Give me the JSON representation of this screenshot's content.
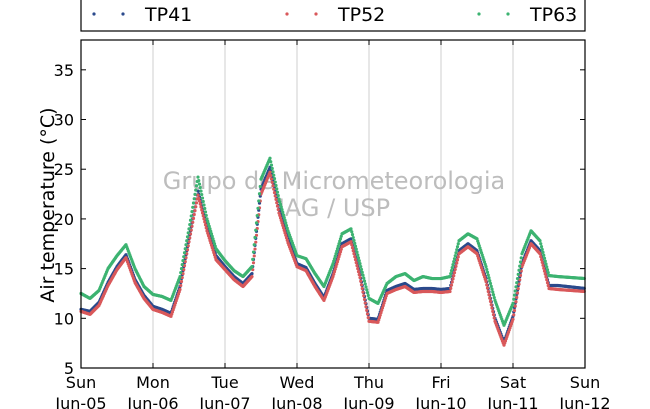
{
  "chart_data": {
    "type": "line",
    "ylabel": "Air temperature (°C)",
    "ylim": [
      5,
      38
    ],
    "yticks": [
      5,
      10,
      15,
      20,
      25,
      30,
      35
    ],
    "xlim": [
      "2016-06-05T00:00",
      "2016-06-12T00:00"
    ],
    "xticks": [
      {
        "day": "Sun",
        "date": "Jun-05"
      },
      {
        "day": "Mon",
        "date": "Jun-06"
      },
      {
        "day": "Tue",
        "date": "Jun-07"
      },
      {
        "day": "Wed",
        "date": "Jun-08"
      },
      {
        "day": "Thu",
        "date": "Jun-09"
      },
      {
        "day": "Fri",
        "date": "Jun-10"
      },
      {
        "day": "Sat",
        "date": "Jun-11"
      },
      {
        "day": "Sun",
        "date": "Jun-12"
      }
    ],
    "grid": "vertical",
    "legend_position": "top",
    "watermark": [
      "Grupo de Micrometeorologia",
      "IAG / USP"
    ],
    "x_units": "hours",
    "series": [
      {
        "name": "TP41",
        "color": "#2b4a8c",
        "points": [
          [
            0,
            10.9
          ],
          [
            3,
            10.7
          ],
          [
            6,
            11.6
          ],
          [
            9,
            13.6
          ],
          [
            12,
            15.2
          ],
          [
            15,
            16.4
          ],
          [
            18,
            13.9
          ],
          [
            21,
            12.3
          ],
          [
            24,
            11.2
          ],
          [
            27,
            10.9
          ],
          [
            30,
            10.5
          ],
          [
            33,
            13.2
          ],
          [
            36,
            18.0
          ],
          [
            39,
            22.8
          ],
          [
            42,
            19.2
          ],
          [
            45,
            16.3
          ],
          [
            48,
            15.2
          ],
          [
            51,
            14.2
          ],
          [
            54,
            13.5
          ],
          [
            57,
            14.5
          ],
          [
            60,
            23.0
          ],
          [
            63,
            25.2
          ],
          [
            66,
            21.0
          ],
          [
            69,
            18.0
          ],
          [
            72,
            15.5
          ],
          [
            75,
            15.1
          ],
          [
            78,
            13.5
          ],
          [
            81,
            12.1
          ],
          [
            84,
            14.5
          ],
          [
            87,
            17.5
          ],
          [
            90,
            18.0
          ],
          [
            93,
            14.4
          ],
          [
            96,
            10.0
          ],
          [
            99,
            9.9
          ],
          [
            102,
            12.8
          ],
          [
            105,
            13.2
          ],
          [
            108,
            13.5
          ],
          [
            111,
            12.9
          ],
          [
            114,
            13.0
          ],
          [
            117,
            13.0
          ],
          [
            120,
            12.9
          ],
          [
            123,
            13.0
          ],
          [
            126,
            16.8
          ],
          [
            129,
            17.5
          ],
          [
            132,
            16.8
          ],
          [
            135,
            14.0
          ],
          [
            138,
            10.0
          ],
          [
            141,
            7.6
          ],
          [
            144,
            10.2
          ],
          [
            147,
            15.5
          ],
          [
            150,
            17.8
          ],
          [
            153,
            16.8
          ],
          [
            156,
            13.3
          ],
          [
            159,
            13.3
          ],
          [
            168,
            13.0
          ]
        ]
      },
      {
        "name": "TP52",
        "color": "#d9585a",
        "points": [
          [
            0,
            10.7
          ],
          [
            3,
            10.4
          ],
          [
            6,
            11.3
          ],
          [
            9,
            13.3
          ],
          [
            12,
            14.9
          ],
          [
            15,
            16.1
          ],
          [
            18,
            13.6
          ],
          [
            21,
            12.0
          ],
          [
            24,
            10.9
          ],
          [
            27,
            10.6
          ],
          [
            30,
            10.2
          ],
          [
            33,
            12.9
          ],
          [
            36,
            17.7
          ],
          [
            39,
            22.4
          ],
          [
            42,
            18.8
          ],
          [
            45,
            15.9
          ],
          [
            48,
            14.9
          ],
          [
            51,
            13.9
          ],
          [
            54,
            13.2
          ],
          [
            57,
            14.2
          ],
          [
            60,
            22.5
          ],
          [
            63,
            24.7
          ],
          [
            66,
            20.6
          ],
          [
            69,
            17.6
          ],
          [
            72,
            15.2
          ],
          [
            75,
            14.8
          ],
          [
            78,
            13.2
          ],
          [
            81,
            11.8
          ],
          [
            84,
            14.2
          ],
          [
            87,
            17.2
          ],
          [
            90,
            17.7
          ],
          [
            93,
            14.1
          ],
          [
            96,
            9.7
          ],
          [
            99,
            9.6
          ],
          [
            102,
            12.5
          ],
          [
            105,
            12.9
          ],
          [
            108,
            13.2
          ],
          [
            111,
            12.6
          ],
          [
            114,
            12.7
          ],
          [
            117,
            12.7
          ],
          [
            120,
            12.6
          ],
          [
            123,
            12.7
          ],
          [
            126,
            16.5
          ],
          [
            129,
            17.2
          ],
          [
            132,
            16.5
          ],
          [
            135,
            13.7
          ],
          [
            138,
            9.7
          ],
          [
            141,
            7.3
          ],
          [
            144,
            9.9
          ],
          [
            147,
            15.2
          ],
          [
            150,
            17.5
          ],
          [
            153,
            16.5
          ],
          [
            156,
            13.0
          ],
          [
            159,
            12.9
          ],
          [
            168,
            12.7
          ]
        ]
      },
      {
        "name": "TP63",
        "color": "#3cb371",
        "points": [
          [
            0,
            12.5
          ],
          [
            3,
            12.0
          ],
          [
            6,
            12.8
          ],
          [
            9,
            15.0
          ],
          [
            12,
            16.3
          ],
          [
            15,
            17.4
          ],
          [
            18,
            15.0
          ],
          [
            21,
            13.2
          ],
          [
            24,
            12.4
          ],
          [
            27,
            12.2
          ],
          [
            30,
            11.8
          ],
          [
            33,
            14.2
          ],
          [
            36,
            19.0
          ],
          [
            39,
            24.2
          ],
          [
            42,
            20.0
          ],
          [
            45,
            17.0
          ],
          [
            48,
            15.8
          ],
          [
            51,
            14.8
          ],
          [
            54,
            14.2
          ],
          [
            57,
            15.2
          ],
          [
            60,
            24.0
          ],
          [
            63,
            26.1
          ],
          [
            66,
            22.0
          ],
          [
            69,
            18.8
          ],
          [
            72,
            16.3
          ],
          [
            75,
            16.0
          ],
          [
            78,
            14.5
          ],
          [
            81,
            13.2
          ],
          [
            84,
            15.5
          ],
          [
            87,
            18.5
          ],
          [
            90,
            19.0
          ],
          [
            93,
            15.5
          ],
          [
            96,
            12.0
          ],
          [
            99,
            11.5
          ],
          [
            102,
            13.5
          ],
          [
            105,
            14.2
          ],
          [
            108,
            14.5
          ],
          [
            111,
            13.8
          ],
          [
            114,
            14.2
          ],
          [
            117,
            14.0
          ],
          [
            120,
            14.0
          ],
          [
            123,
            14.2
          ],
          [
            126,
            17.8
          ],
          [
            129,
            18.5
          ],
          [
            132,
            18.0
          ],
          [
            135,
            15.2
          ],
          [
            138,
            11.8
          ],
          [
            141,
            9.3
          ],
          [
            144,
            11.5
          ],
          [
            147,
            16.5
          ],
          [
            150,
            18.8
          ],
          [
            153,
            17.8
          ],
          [
            156,
            14.3
          ],
          [
            159,
            14.2
          ],
          [
            168,
            14.0
          ]
        ]
      }
    ]
  }
}
